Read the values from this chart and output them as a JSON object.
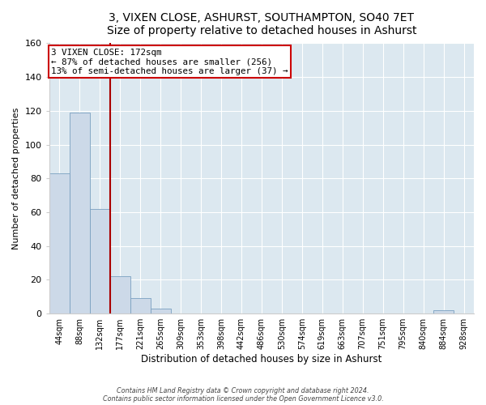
{
  "title1": "3, VIXEN CLOSE, ASHURST, SOUTHAMPTON, SO40 7ET",
  "title2": "Size of property relative to detached houses in Ashurst",
  "xlabel": "Distribution of detached houses by size in Ashurst",
  "ylabel": "Number of detached properties",
  "bin_labels": [
    "44sqm",
    "88sqm",
    "132sqm",
    "177sqm",
    "221sqm",
    "265sqm",
    "309sqm",
    "353sqm",
    "398sqm",
    "442sqm",
    "486sqm",
    "530sqm",
    "574sqm",
    "619sqm",
    "663sqm",
    "707sqm",
    "751sqm",
    "795sqm",
    "840sqm",
    "884sqm",
    "928sqm"
  ],
  "bar_heights": [
    83,
    119,
    62,
    22,
    9,
    3,
    0,
    0,
    0,
    0,
    0,
    0,
    0,
    0,
    0,
    0,
    0,
    0,
    0,
    2,
    0
  ],
  "bar_color": "#ccd9e8",
  "bar_edge_color": "#7aa0c0",
  "ylim": [
    0,
    160
  ],
  "yticks": [
    0,
    20,
    40,
    60,
    80,
    100,
    120,
    140,
    160
  ],
  "vline_color": "#aa0000",
  "annotation_title": "3 VIXEN CLOSE: 172sqm",
  "annotation_line1": "← 87% of detached houses are smaller (256)",
  "annotation_line2": "13% of semi-detached houses are larger (37) →",
  "annotation_box_color": "#ffffff",
  "annotation_box_edge": "#cc0000",
  "footer1": "Contains HM Land Registry data © Crown copyright and database right 2024.",
  "footer2": "Contains public sector information licensed under the Open Government Licence v3.0.",
  "fig_background_color": "#ffffff",
  "plot_background": "#dce8f0",
  "grid_color": "#ffffff",
  "title_fontsize": 10,
  "subtitle_fontsize": 9
}
